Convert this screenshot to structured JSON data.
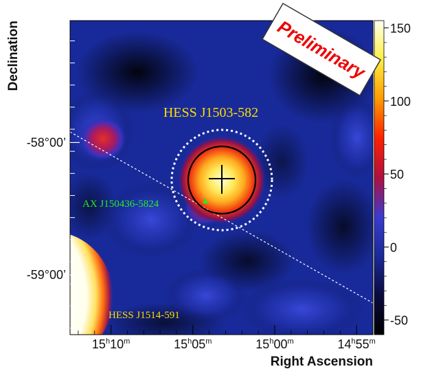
{
  "chart_data": {
    "type": "heatmap",
    "title": "",
    "xlabel": "Right Ascension",
    "ylabel": "Declination",
    "x_ticks": [
      {
        "h": "15",
        "m": "10",
        "ra_minutes": 910
      },
      {
        "h": "15",
        "m": "05",
        "ra_minutes": 905
      },
      {
        "h": "15",
        "m": "00",
        "ra_minutes": 900
      },
      {
        "h": "14",
        "m": "55",
        "ra_minutes": 895
      }
    ],
    "y_ticks": [
      {
        "label": "-58°00’",
        "dec": -58.0
      },
      {
        "label": "-59°00’",
        "dec": -59.0
      }
    ],
    "xlim": [
      912.5,
      894.0
    ],
    "ylim": [
      -59.45,
      -57.08
    ],
    "colorbar": {
      "ticks": [
        150,
        100,
        50,
        0,
        -50
      ],
      "range": [
        -60,
        155
      ],
      "colors": [
        "#000000",
        "#0a0a40",
        "#1a2a9a",
        "#3b3bd0",
        "#b01040",
        "#ff2000",
        "#ff9a00",
        "#ffee40",
        "#fffff0"
      ]
    },
    "sources": [
      {
        "name": "HESS J1503-582",
        "ra_minutes": 903.8,
        "dec": -58.23,
        "peak": 155,
        "label_color": "#ffdd00"
      },
      {
        "name": "HESS J1514-591",
        "ra_minutes": 913.3,
        "dec": -59.18,
        "peak": 160,
        "label_color": "#ffdd00"
      },
      {
        "name": "AX J150436-5824",
        "ra_minutes": 904.6,
        "dec": -58.4,
        "marker": "triangle",
        "label_color": "#22ee22"
      }
    ],
    "annotations": {
      "preliminary": "Preliminary"
    }
  }
}
